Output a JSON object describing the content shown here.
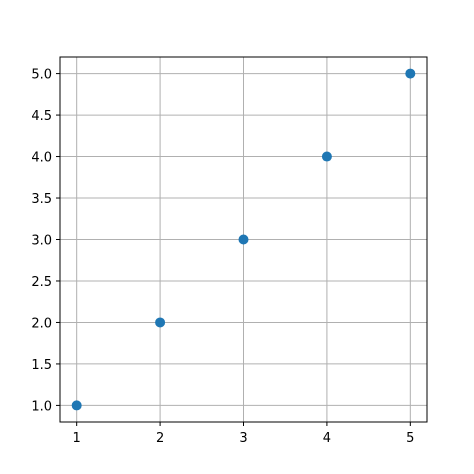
{
  "chart_data": {
    "type": "scatter",
    "title": "",
    "xlabel": "",
    "ylabel": "",
    "xlim": [
      0.8,
      5.2
    ],
    "ylim": [
      0.8,
      5.2
    ],
    "grid": true,
    "legend": "none",
    "x_ticks": [
      1,
      2,
      3,
      4,
      5
    ],
    "x_tick_labels": [
      "1",
      "2",
      "3",
      "4",
      "5"
    ],
    "y_ticks": [
      1.0,
      1.5,
      2.0,
      2.5,
      3.0,
      3.5,
      4.0,
      4.5,
      5.0
    ],
    "y_tick_labels": [
      "1.0",
      "1.5",
      "2.0",
      "2.5",
      "3.0",
      "3.5",
      "4.0",
      "4.5",
      "5.0"
    ],
    "series": [
      {
        "color": "#1f77b4",
        "x": [
          1,
          2,
          3,
          4,
          5
        ],
        "y": [
          1,
          2,
          3,
          4,
          5
        ]
      }
    ]
  }
}
